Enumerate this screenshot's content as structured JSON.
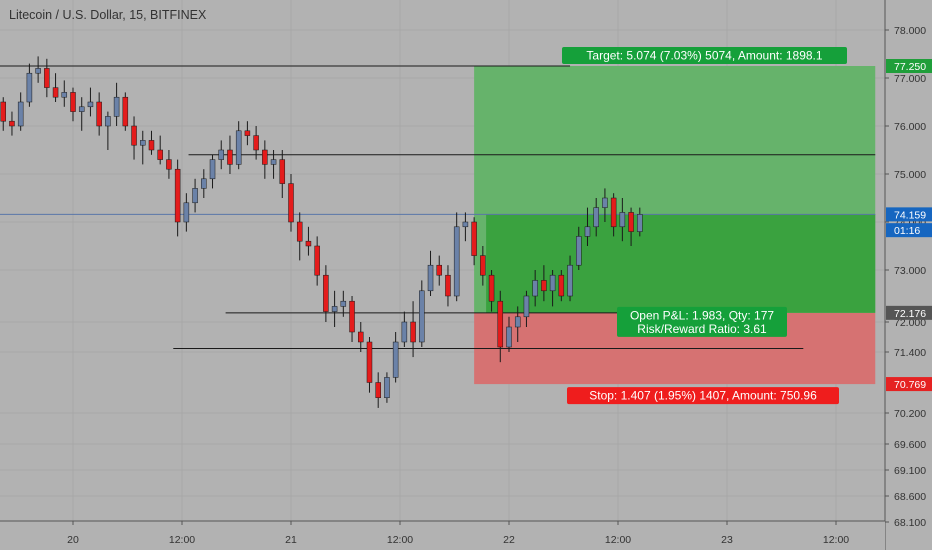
{
  "header": {
    "symbol_title": "Litecoin / U.S. Dollar, 15, BITFINEX"
  },
  "chart_data": {
    "type": "candlestick",
    "title": "Litecoin / U.S. Dollar, 15, BITFINEX",
    "x_tick_labels": [
      {
        "label": "20",
        "t": 0.0
      },
      {
        "label": "12:00",
        "t": 0.5
      },
      {
        "label": "21",
        "t": 1.0
      },
      {
        "label": "12:00",
        "t": 1.5
      },
      {
        "label": "22",
        "t": 2.0
      },
      {
        "label": "12:00",
        "t": 2.5
      },
      {
        "label": "23",
        "t": 3.0
      },
      {
        "label": "12:00",
        "t": 3.5
      }
    ],
    "y_tick_labels": [
      "78.000",
      "77.000",
      "76.000",
      "75.000",
      "74.000",
      "73.000",
      "72.000",
      "71.400",
      "70.200",
      "69.600",
      "69.100",
      "68.600",
      "68.100"
    ],
    "ylim": [
      68.05,
      78.3
    ],
    "price_badges": [
      {
        "label": "77.250",
        "value": 77.25,
        "color": "#1f9e3a"
      },
      {
        "label": "74.159",
        "value": 74.159,
        "color": "#1666c0"
      },
      {
        "label": "01:16",
        "value": 73.83,
        "color": "#1666c0"
      },
      {
        "label": "72.176",
        "value": 72.176,
        "color": "#555555"
      },
      {
        "label": "70.769",
        "value": 70.769,
        "color": "#e52222"
      }
    ],
    "horizontal_lines": [
      {
        "value": 77.25,
        "t_start": -0.35,
        "t_end": 2.28
      },
      {
        "value": 75.4,
        "t_start": 0.53,
        "t_end": 3.68
      },
      {
        "value": 74.159,
        "t_start": -0.35,
        "t_end": 3.68,
        "color": "#5a76a8"
      },
      {
        "value": 72.176,
        "t_start": 0.7,
        "t_end": 2.54
      },
      {
        "value": 71.47,
        "t_start": 0.46,
        "t_end": 3.35
      }
    ],
    "position": {
      "t_start": 1.84,
      "t_end": 3.68,
      "entry": 72.176,
      "target": 77.25,
      "stop": 70.769,
      "current": 74.159,
      "t_current": 1.895,
      "target_label": "Target: 5.074 (7.03%) 5074, Amount: 1898.1",
      "stop_label": "Stop: 1.407 (1.95%) 1407, Amount: 750.96",
      "pnl_label": "Open P&L: 1.983, Qty: 177",
      "rr_label": "Risk/Reward Ratio: 3.61"
    },
    "series": [
      {
        "t": -0.32,
        "o": 76.5,
        "h": 76.6,
        "l": 75.9,
        "c": 76.1
      },
      {
        "t": -0.28,
        "o": 76.1,
        "h": 76.3,
        "l": 75.8,
        "c": 76.0
      },
      {
        "t": -0.24,
        "o": 76.0,
        "h": 76.7,
        "l": 75.9,
        "c": 76.5
      },
      {
        "t": -0.2,
        "o": 76.5,
        "h": 77.3,
        "l": 76.4,
        "c": 77.1
      },
      {
        "t": -0.16,
        "o": 77.1,
        "h": 77.45,
        "l": 76.9,
        "c": 77.2
      },
      {
        "t": -0.12,
        "o": 77.2,
        "h": 77.4,
        "l": 76.6,
        "c": 76.8
      },
      {
        "t": -0.08,
        "o": 76.8,
        "h": 77.1,
        "l": 76.5,
        "c": 76.6
      },
      {
        "t": -0.04,
        "o": 76.6,
        "h": 76.95,
        "l": 76.4,
        "c": 76.7
      },
      {
        "t": 0.0,
        "o": 76.7,
        "h": 76.8,
        "l": 76.1,
        "c": 76.3
      },
      {
        "t": 0.04,
        "o": 76.3,
        "h": 76.6,
        "l": 75.9,
        "c": 76.4
      },
      {
        "t": 0.08,
        "o": 76.4,
        "h": 76.8,
        "l": 76.2,
        "c": 76.5
      },
      {
        "t": 0.12,
        "o": 76.5,
        "h": 76.7,
        "l": 75.8,
        "c": 76.0
      },
      {
        "t": 0.16,
        "o": 76.0,
        "h": 76.3,
        "l": 75.5,
        "c": 76.2
      },
      {
        "t": 0.2,
        "o": 76.2,
        "h": 76.9,
        "l": 76.0,
        "c": 76.6
      },
      {
        "t": 0.24,
        "o": 76.6,
        "h": 76.7,
        "l": 75.9,
        "c": 76.0
      },
      {
        "t": 0.28,
        "o": 76.0,
        "h": 76.2,
        "l": 75.3,
        "c": 75.6
      },
      {
        "t": 0.32,
        "o": 75.6,
        "h": 75.9,
        "l": 75.2,
        "c": 75.7
      },
      {
        "t": 0.36,
        "o": 75.7,
        "h": 75.9,
        "l": 75.4,
        "c": 75.5
      },
      {
        "t": 0.4,
        "o": 75.5,
        "h": 75.8,
        "l": 75.2,
        "c": 75.3
      },
      {
        "t": 0.44,
        "o": 75.3,
        "h": 75.5,
        "l": 74.9,
        "c": 75.1
      },
      {
        "t": 0.48,
        "o": 75.1,
        "h": 75.3,
        "l": 73.7,
        "c": 74.0
      },
      {
        "t": 0.52,
        "o": 74.0,
        "h": 74.6,
        "l": 73.8,
        "c": 74.4
      },
      {
        "t": 0.56,
        "o": 74.4,
        "h": 74.9,
        "l": 74.2,
        "c": 74.7
      },
      {
        "t": 0.6,
        "o": 74.7,
        "h": 75.1,
        "l": 74.5,
        "c": 74.9
      },
      {
        "t": 0.64,
        "o": 74.9,
        "h": 75.4,
        "l": 74.7,
        "c": 75.3
      },
      {
        "t": 0.68,
        "o": 75.3,
        "h": 75.7,
        "l": 75.1,
        "c": 75.5
      },
      {
        "t": 0.72,
        "o": 75.5,
        "h": 75.8,
        "l": 75.0,
        "c": 75.2
      },
      {
        "t": 0.76,
        "o": 75.2,
        "h": 76.1,
        "l": 75.1,
        "c": 75.9
      },
      {
        "t": 0.8,
        "o": 75.9,
        "h": 76.1,
        "l": 75.6,
        "c": 75.8
      },
      {
        "t": 0.84,
        "o": 75.8,
        "h": 76.0,
        "l": 75.3,
        "c": 75.5
      },
      {
        "t": 0.88,
        "o": 75.5,
        "h": 75.7,
        "l": 74.9,
        "c": 75.2
      },
      {
        "t": 0.92,
        "o": 75.2,
        "h": 75.5,
        "l": 74.9,
        "c": 75.3
      },
      {
        "t": 0.96,
        "o": 75.3,
        "h": 75.5,
        "l": 74.5,
        "c": 74.8
      },
      {
        "t": 1.0,
        "o": 74.8,
        "h": 75.0,
        "l": 73.8,
        "c": 74.0
      },
      {
        "t": 1.04,
        "o": 74.0,
        "h": 74.2,
        "l": 73.2,
        "c": 73.6
      },
      {
        "t": 1.08,
        "o": 73.6,
        "h": 73.9,
        "l": 73.3,
        "c": 73.5
      },
      {
        "t": 1.12,
        "o": 73.5,
        "h": 73.7,
        "l": 72.7,
        "c": 72.9
      },
      {
        "t": 1.16,
        "o": 72.9,
        "h": 73.1,
        "l": 72.0,
        "c": 72.2
      },
      {
        "t": 1.2,
        "o": 72.2,
        "h": 72.6,
        "l": 71.9,
        "c": 72.3
      },
      {
        "t": 1.24,
        "o": 72.3,
        "h": 72.6,
        "l": 72.1,
        "c": 72.4
      },
      {
        "t": 1.28,
        "o": 72.4,
        "h": 72.5,
        "l": 71.6,
        "c": 71.8
      },
      {
        "t": 1.32,
        "o": 71.8,
        "h": 72.0,
        "l": 71.4,
        "c": 71.6
      },
      {
        "t": 1.36,
        "o": 71.6,
        "h": 71.7,
        "l": 70.6,
        "c": 70.8
      },
      {
        "t": 1.4,
        "o": 70.8,
        "h": 71.0,
        "l": 70.3,
        "c": 70.5
      },
      {
        "t": 1.44,
        "o": 70.5,
        "h": 71.0,
        "l": 70.4,
        "c": 70.9
      },
      {
        "t": 1.48,
        "o": 70.9,
        "h": 71.8,
        "l": 70.8,
        "c": 71.6
      },
      {
        "t": 1.52,
        "o": 71.6,
        "h": 72.2,
        "l": 71.5,
        "c": 72.0
      },
      {
        "t": 1.56,
        "o": 72.0,
        "h": 72.4,
        "l": 71.3,
        "c": 71.6
      },
      {
        "t": 1.6,
        "o": 71.6,
        "h": 72.8,
        "l": 71.5,
        "c": 72.6
      },
      {
        "t": 1.64,
        "o": 72.6,
        "h": 73.4,
        "l": 72.5,
        "c": 73.1
      },
      {
        "t": 1.68,
        "o": 73.1,
        "h": 73.3,
        "l": 72.7,
        "c": 72.9
      },
      {
        "t": 1.72,
        "o": 72.9,
        "h": 73.1,
        "l": 72.3,
        "c": 72.5
      },
      {
        "t": 1.76,
        "o": 72.5,
        "h": 74.2,
        "l": 72.4,
        "c": 73.9
      },
      {
        "t": 1.8,
        "o": 73.9,
        "h": 74.2,
        "l": 73.6,
        "c": 74.0
      },
      {
        "t": 1.84,
        "o": 74.0,
        "h": 74.1,
        "l": 73.1,
        "c": 73.3
      },
      {
        "t": 1.88,
        "o": 73.3,
        "h": 73.5,
        "l": 72.7,
        "c": 72.9
      },
      {
        "t": 1.92,
        "o": 72.9,
        "h": 73.0,
        "l": 72.2,
        "c": 72.4
      },
      {
        "t": 1.96,
        "o": 72.4,
        "h": 72.6,
        "l": 71.2,
        "c": 71.5
      },
      {
        "t": 2.0,
        "o": 71.5,
        "h": 72.1,
        "l": 71.4,
        "c": 71.9
      },
      {
        "t": 2.04,
        "o": 71.9,
        "h": 72.3,
        "l": 71.6,
        "c": 72.1
      },
      {
        "t": 2.08,
        "o": 72.1,
        "h": 72.6,
        "l": 71.9,
        "c": 72.5
      },
      {
        "t": 2.12,
        "o": 72.5,
        "h": 73.0,
        "l": 72.3,
        "c": 72.8
      },
      {
        "t": 2.16,
        "o": 72.8,
        "h": 73.1,
        "l": 72.4,
        "c": 72.6
      },
      {
        "t": 2.2,
        "o": 72.6,
        "h": 73.0,
        "l": 72.3,
        "c": 72.9
      },
      {
        "t": 2.24,
        "o": 72.9,
        "h": 73.0,
        "l": 72.4,
        "c": 72.5
      },
      {
        "t": 2.28,
        "o": 72.5,
        "h": 73.3,
        "l": 72.4,
        "c": 73.1
      },
      {
        "t": 2.32,
        "o": 73.1,
        "h": 73.9,
        "l": 73.0,
        "c": 73.7
      },
      {
        "t": 2.36,
        "o": 73.7,
        "h": 74.3,
        "l": 73.5,
        "c": 73.9
      },
      {
        "t": 2.4,
        "o": 73.9,
        "h": 74.5,
        "l": 73.7,
        "c": 74.3
      },
      {
        "t": 2.44,
        "o": 74.3,
        "h": 74.7,
        "l": 74.0,
        "c": 74.5
      },
      {
        "t": 2.48,
        "o": 74.5,
        "h": 74.6,
        "l": 73.7,
        "c": 73.9
      },
      {
        "t": 2.52,
        "o": 73.9,
        "h": 74.5,
        "l": 73.6,
        "c": 74.2
      },
      {
        "t": 2.56,
        "o": 74.2,
        "h": 74.3,
        "l": 73.5,
        "c": 73.8
      },
      {
        "t": 2.6,
        "o": 73.8,
        "h": 74.3,
        "l": 73.7,
        "c": 74.159
      }
    ]
  }
}
